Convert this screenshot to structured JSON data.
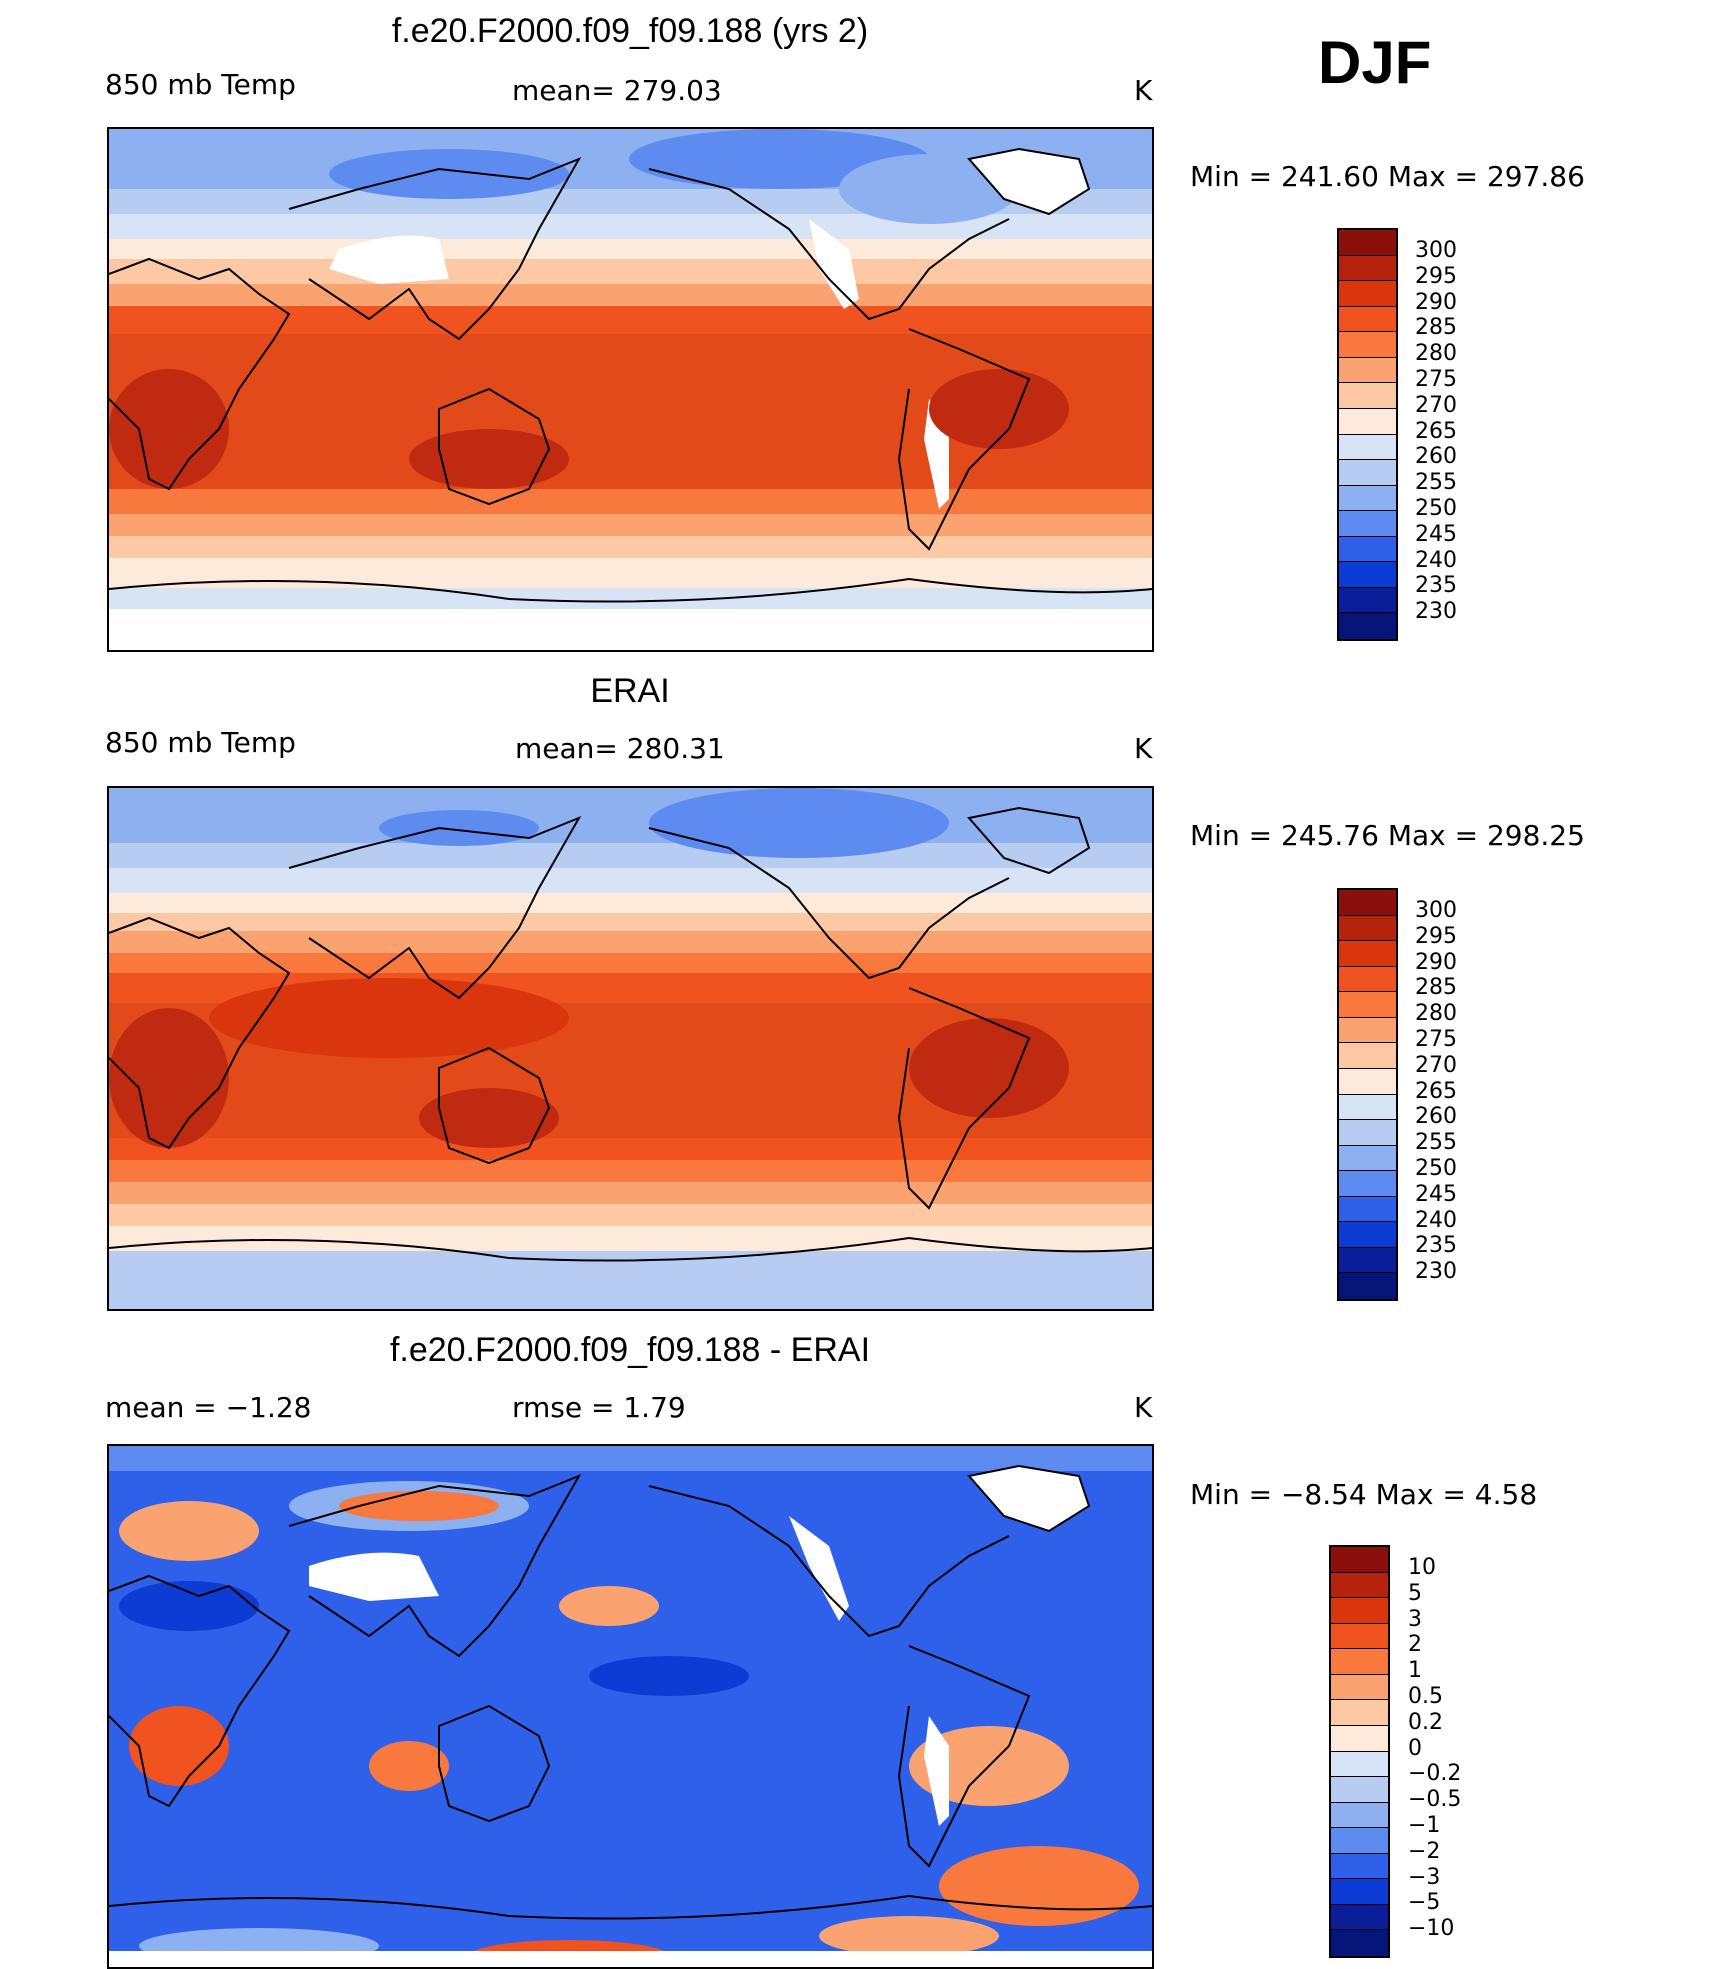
{
  "season": "DJF",
  "panels": [
    {
      "title": "f.e20.F2000.f09_f09.188 (yrs 2)",
      "left_label": "850 mb Temp",
      "center_label": "mean= 279.03",
      "units": "K",
      "minmax": "Min = 241.60 Max = 297.86",
      "colorbar": {
        "levels": [
          "300",
          "295",
          "290",
          "285",
          "280",
          "275",
          "270",
          "265",
          "260",
          "255",
          "250",
          "245",
          "240",
          "235",
          "230"
        ],
        "colors": [
          "#8b0f0b",
          "#b5230d",
          "#d9360e",
          "#f0531f",
          "#f8783e",
          "#fba271",
          "#fdc9a5",
          "#feeadb",
          "#d6e4f5",
          "#b6cdf1",
          "#8cb0f0",
          "#5e8bef",
          "#2f60ea",
          "#0d3cd4",
          "#0a1e99",
          "#06157a"
        ]
      },
      "bg_color": "#e34a1a"
    },
    {
      "title": "ERAI",
      "left_label": "850 mb Temp",
      "center_label": "mean= 280.31",
      "units": "K",
      "minmax": "Min = 245.76 Max = 298.25",
      "colorbar": {
        "levels": [
          "300",
          "295",
          "290",
          "285",
          "280",
          "275",
          "270",
          "265",
          "260",
          "255",
          "250",
          "245",
          "240",
          "235",
          "230"
        ],
        "colors": [
          "#8b0f0b",
          "#b5230d",
          "#d9360e",
          "#f0531f",
          "#f8783e",
          "#fba271",
          "#fdc9a5",
          "#feeadb",
          "#d6e4f5",
          "#b6cdf1",
          "#8cb0f0",
          "#5e8bef",
          "#2f60ea",
          "#0d3cd4",
          "#0a1e99",
          "#06157a"
        ]
      },
      "bg_color": "#e34a1a"
    },
    {
      "title": "f.e20.F2000.f09_f09.188 - ERAI",
      "left_label": "mean = −1.28",
      "center_label": "rmse = 1.79",
      "units": "K",
      "minmax": "Min = −8.54 Max = 4.58",
      "colorbar": {
        "levels": [
          "10",
          "5",
          "3",
          "2",
          "1",
          "0.5",
          "0.2",
          "0",
          "−0.2",
          "−0.5",
          "−1",
          "−2",
          "−3",
          "−5",
          "−10"
        ],
        "colors": [
          "#8b0f0b",
          "#b5230d",
          "#d9360e",
          "#f0531f",
          "#f8783e",
          "#fba271",
          "#fdc9a5",
          "#feeadb",
          "#d6e4f5",
          "#b6cdf1",
          "#8cb0f0",
          "#5e8bef",
          "#2f60ea",
          "#0d3cd4",
          "#0a1e99",
          "#06157a"
        ]
      },
      "bg_color": "#2f60ea"
    }
  ]
}
